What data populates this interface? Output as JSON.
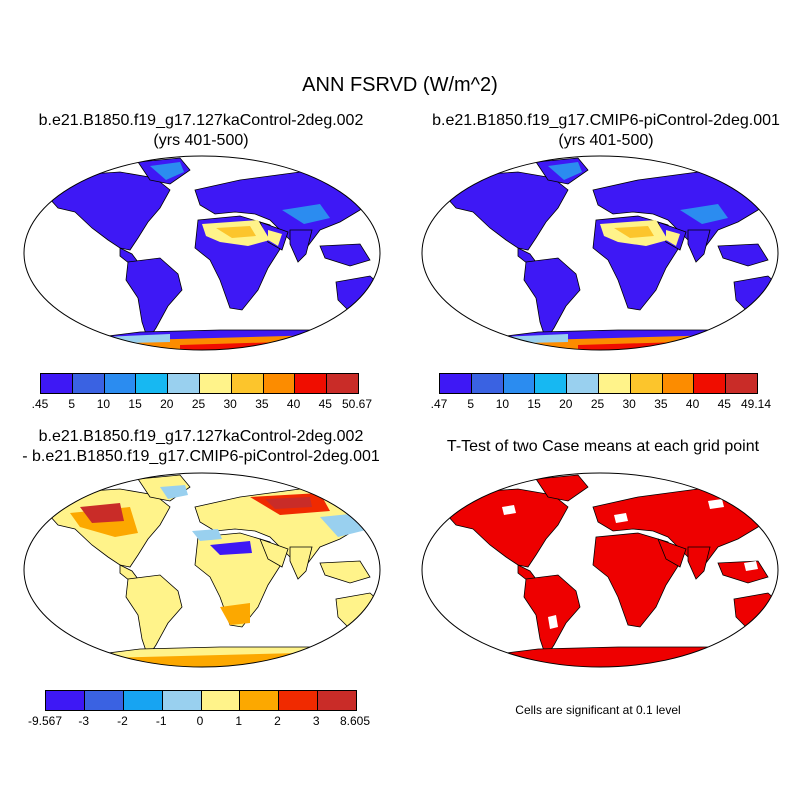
{
  "figure": {
    "title": "ANN FSRVD (W/m^2)"
  },
  "panels": {
    "case1": {
      "title_line1": "b.e21.B1850.f19_g17.127kaControl-2deg.002",
      "title_line2": "(yrs 401-500)",
      "colorbar": {
        "colors": [
          "#3e18f5",
          "#3a62e2",
          "#2b8cf0",
          "#17b8f2",
          "#99d0ef",
          "#fff38a",
          "#fcc52c",
          "#fc8c00",
          "#f00d00",
          "#c92c28"
        ],
        "labels": [
          ".45",
          "5",
          "10",
          "15",
          "20",
          "25",
          "30",
          "35",
          "40",
          "45",
          "50.67"
        ]
      }
    },
    "case2": {
      "title_line1": "b.e21.B1850.f19_g17.CMIP6-piControl-2deg.001",
      "title_line2": "(yrs 401-500)",
      "colorbar": {
        "colors": [
          "#3e18f5",
          "#3a62e2",
          "#2b8cf0",
          "#17b8f2",
          "#99d0ef",
          "#fff38a",
          "#fcc52c",
          "#fc8c00",
          "#f00d00",
          "#c92c28"
        ],
        "labels": [
          ".47",
          "5",
          "10",
          "15",
          "20",
          "25",
          "30",
          "35",
          "40",
          "45",
          "49.14"
        ]
      }
    },
    "diff": {
      "title_line1": "b.e21.B1850.f19_g17.127kaControl-2deg.002",
      "title_line2": "- b.e21.B1850.f19_g17.CMIP6-piControl-2deg.001",
      "colorbar": {
        "colors": [
          "#3e18f5",
          "#3a62e2",
          "#17a4f2",
          "#99d0ef",
          "#fff38a",
          "#fca800",
          "#f02a00",
          "#c92c28"
        ],
        "labels": [
          "-9.567",
          "-3",
          "-2",
          "-1",
          "0",
          "1",
          "2",
          "3",
          "8.605"
        ]
      }
    },
    "ttest": {
      "title": "T-Test of two Case means at each grid point",
      "note": "Cells are significant at 0.1 level",
      "significant_color": "#ee0000"
    }
  }
}
